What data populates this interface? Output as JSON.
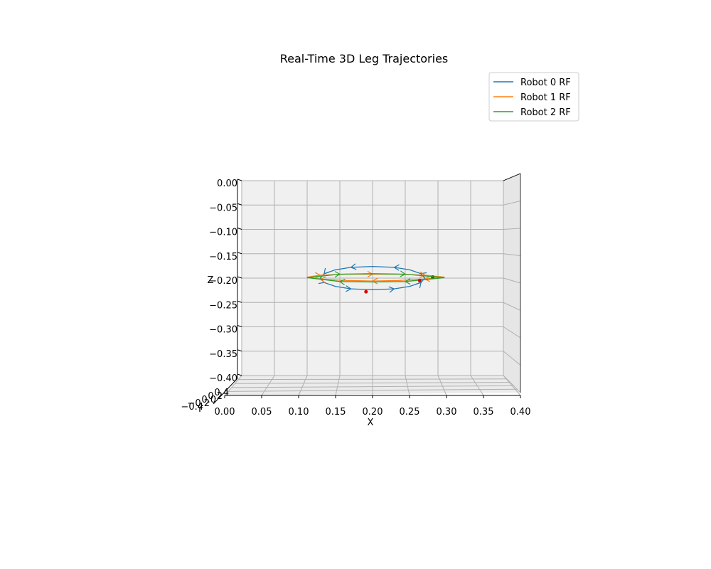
{
  "chart_data": {
    "type": "line",
    "title": "Real-Time 3D Leg Trajectories",
    "xlabel": "X",
    "ylabel": "Y",
    "zlabel": "Z",
    "xlim": [
      0.0,
      0.4
    ],
    "zlim": [
      -0.4,
      0.0
    ],
    "x_ticks": [
      "0.00",
      "0.05",
      "0.10",
      "0.15",
      "0.20",
      "0.25",
      "0.30",
      "0.35",
      "0.40"
    ],
    "z_ticks": [
      "0.00",
      "−0.05",
      "−0.10",
      "−0.15",
      "−0.20",
      "−0.25",
      "−0.30",
      "−0.35",
      "−0.40"
    ],
    "z_tick_values": [
      0.0,
      -0.05,
      -0.1,
      -0.15,
      -0.2,
      -0.25,
      -0.3,
      -0.35,
      -0.4
    ],
    "y_ticks": [
      "0.4",
      "0.2",
      "0.0",
      "−0.2",
      "−0.4"
    ],
    "grid": true,
    "legend_position": "top-right",
    "series": [
      {
        "name": "Robot 0 RF",
        "color": "#1f77b4",
        "x": [
          0.28,
          0.274,
          0.257,
          0.233,
          0.2,
          0.167,
          0.143,
          0.126,
          0.12,
          0.126,
          0.143,
          0.167,
          0.2,
          0.233,
          0.257,
          0.274,
          0.28
        ],
        "z": [
          -0.2,
          -0.191,
          -0.183,
          -0.178,
          -0.176,
          -0.178,
          -0.183,
          -0.191,
          -0.2,
          -0.209,
          -0.217,
          -0.222,
          -0.224,
          -0.222,
          -0.217,
          -0.209,
          -0.2
        ],
        "current_point": {
          "x": 0.19,
          "z": -0.228
        }
      },
      {
        "name": "Robot 1 RF",
        "color": "#ff7f0e",
        "x": [
          0.1,
          0.12,
          0.16,
          0.2,
          0.24,
          0.28,
          0.31,
          0.28,
          0.24,
          0.2,
          0.16,
          0.12,
          0.1
        ],
        "z": [
          -0.198,
          -0.194,
          -0.192,
          -0.192,
          -0.192,
          -0.194,
          -0.198,
          -0.202,
          -0.205,
          -0.206,
          -0.205,
          -0.202,
          -0.198
        ],
        "current_point": {
          "x": 0.292,
          "z": -0.198
        }
      },
      {
        "name": "Robot 2 RF",
        "color": "#2ca02c",
        "x": [
          0.1,
          0.15,
          0.2,
          0.25,
          0.31,
          0.25,
          0.2,
          0.15,
          0.1
        ],
        "z": [
          -0.199,
          -0.192,
          -0.191,
          -0.192,
          -0.199,
          -0.207,
          -0.208,
          -0.207,
          -0.199
        ],
        "current_point": {
          "x": 0.272,
          "z": -0.205
        }
      }
    ]
  }
}
